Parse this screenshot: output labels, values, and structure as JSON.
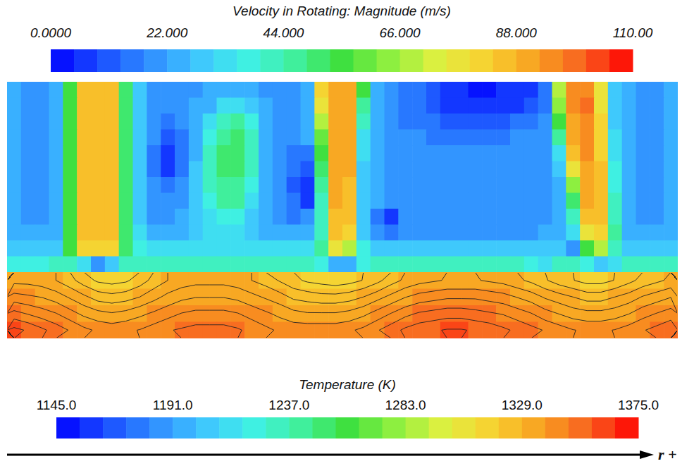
{
  "chart_data": {
    "type": "heatmap",
    "xlabel": "r +",
    "tick_labels": false,
    "panels": [
      {
        "type": "heatmap",
        "title": "Velocity in Rotating: Magnitude (m/s)",
        "colorbar": {
          "range": [
            0,
            110
          ],
          "ticks": [
            {
              "value": 0,
              "label": "0.0000"
            },
            {
              "value": 22,
              "label": "22.000"
            },
            {
              "value": 44,
              "label": "44.000"
            },
            {
              "value": 66,
              "label": "66.000"
            },
            {
              "value": 88,
              "label": "88.000"
            },
            {
              "value": 110,
              "label": "110.00"
            }
          ]
        },
        "values": [
          [
            22,
            20,
            18,
            22,
            55,
            85,
            86,
            85,
            50,
            28,
            20,
            18,
            18,
            20,
            22,
            24,
            24,
            22,
            20,
            20,
            18,
            22,
            80,
            88,
            88,
            55,
            24,
            18,
            16,
            14,
            10,
            6,
            5,
            4,
            4,
            5,
            6,
            8,
            14,
            70,
            94,
            96,
            75,
            30,
            22,
            20,
            20,
            22
          ],
          [
            22,
            20,
            18,
            22,
            55,
            86,
            87,
            86,
            50,
            30,
            20,
            18,
            18,
            22,
            26,
            32,
            34,
            28,
            22,
            20,
            18,
            22,
            75,
            88,
            88,
            45,
            24,
            18,
            16,
            14,
            12,
            8,
            6,
            5,
            5,
            6,
            8,
            10,
            16,
            65,
            94,
            97,
            78,
            30,
            22,
            20,
            20,
            22
          ],
          [
            22,
            20,
            18,
            22,
            55,
            86,
            87,
            86,
            50,
            30,
            18,
            14,
            18,
            24,
            32,
            42,
            46,
            36,
            24,
            20,
            18,
            22,
            70,
            88,
            88,
            40,
            24,
            18,
            16,
            16,
            14,
            12,
            10,
            10,
            10,
            12,
            14,
            16,
            18,
            55,
            92,
            96,
            80,
            30,
            22,
            20,
            20,
            22
          ],
          [
            22,
            20,
            18,
            22,
            55,
            86,
            87,
            86,
            50,
            30,
            18,
            10,
            16,
            26,
            38,
            48,
            50,
            40,
            26,
            20,
            18,
            22,
            60,
            88,
            88,
            35,
            24,
            18,
            18,
            18,
            16,
            16,
            16,
            16,
            16,
            16,
            18,
            18,
            20,
            45,
            90,
            95,
            80,
            32,
            22,
            20,
            20,
            22
          ],
          [
            22,
            20,
            18,
            22,
            55,
            86,
            87,
            86,
            50,
            30,
            16,
            6,
            14,
            26,
            40,
            50,
            52,
            42,
            26,
            20,
            16,
            16,
            55,
            88,
            88,
            32,
            24,
            18,
            18,
            18,
            18,
            18,
            18,
            18,
            18,
            18,
            18,
            18,
            20,
            35,
            85,
            94,
            82,
            34,
            22,
            20,
            20,
            22
          ],
          [
            22,
            20,
            18,
            22,
            55,
            86,
            87,
            86,
            50,
            30,
            16,
            8,
            16,
            28,
            40,
            50,
            50,
            40,
            24,
            18,
            14,
            10,
            50,
            88,
            88,
            30,
            22,
            18,
            18,
            18,
            18,
            18,
            18,
            18,
            18,
            18,
            18,
            18,
            20,
            28,
            75,
            92,
            84,
            36,
            22,
            20,
            20,
            22
          ],
          [
            22,
            20,
            18,
            22,
            55,
            86,
            87,
            86,
            50,
            30,
            18,
            16,
            18,
            28,
            40,
            48,
            48,
            38,
            22,
            18,
            12,
            6,
            45,
            88,
            86,
            30,
            22,
            18,
            18,
            18,
            18,
            18,
            18,
            18,
            18,
            18,
            18,
            18,
            20,
            24,
            62,
            90,
            86,
            38,
            22,
            20,
            20,
            22
          ],
          [
            22,
            20,
            18,
            22,
            55,
            86,
            87,
            86,
            50,
            30,
            18,
            18,
            20,
            28,
            38,
            44,
            44,
            34,
            22,
            18,
            14,
            8,
            42,
            88,
            85,
            28,
            22,
            18,
            18,
            18,
            18,
            18,
            18,
            18,
            18,
            18,
            18,
            18,
            20,
            22,
            50,
            88,
            86,
            40,
            22,
            20,
            20,
            22
          ],
          [
            22,
            20,
            18,
            22,
            55,
            86,
            87,
            86,
            50,
            30,
            20,
            20,
            22,
            28,
            34,
            38,
            38,
            30,
            22,
            18,
            16,
            18,
            40,
            86,
            84,
            28,
            14,
            8,
            18,
            18,
            18,
            18,
            18,
            18,
            18,
            18,
            18,
            18,
            20,
            22,
            40,
            85,
            84,
            40,
            22,
            20,
            20,
            22
          ],
          [
            24,
            22,
            22,
            24,
            55,
            86,
            87,
            86,
            50,
            32,
            24,
            24,
            26,
            30,
            32,
            34,
            34,
            30,
            26,
            24,
            22,
            24,
            42,
            85,
            80,
            30,
            18,
            14,
            20,
            20,
            20,
            20,
            20,
            20,
            20,
            20,
            20,
            20,
            22,
            24,
            32,
            75,
            80,
            45,
            24,
            22,
            22,
            24
          ],
          [
            28,
            28,
            28,
            30,
            55,
            80,
            82,
            80,
            50,
            36,
            32,
            32,
            32,
            34,
            34,
            34,
            34,
            34,
            32,
            32,
            32,
            32,
            46,
            75,
            70,
            36,
            30,
            30,
            30,
            30,
            30,
            30,
            30,
            30,
            30,
            30,
            30,
            30,
            30,
            30,
            20,
            55,
            70,
            40,
            30,
            28,
            28,
            28
          ],
          [
            36,
            38,
            38,
            40,
            42,
            35,
            20,
            30,
            42,
            40,
            40,
            40,
            40,
            40,
            40,
            40,
            40,
            40,
            40,
            40,
            40,
            40,
            36,
            22,
            26,
            38,
            40,
            40,
            40,
            40,
            40,
            40,
            40,
            40,
            40,
            40,
            40,
            36,
            34,
            40,
            40,
            36,
            30,
            34,
            40,
            40,
            40,
            40
          ]
        ]
      },
      {
        "type": "contour",
        "title": "Temperature (K)",
        "colorbar": {
          "range": [
            1145,
            1375
          ],
          "ticks": [
            {
              "value": 1145,
              "label": "1145.0"
            },
            {
              "value": 1191,
              "label": "1191.0"
            },
            {
              "value": 1237,
              "label": "1237.0"
            },
            {
              "value": 1283,
              "label": "1283.0"
            },
            {
              "value": 1329,
              "label": "1329.0"
            },
            {
              "value": 1375,
              "label": "1375.0"
            }
          ]
        },
        "values": [
          [
            1332,
            1332,
            1331,
            1329,
            1326,
            1322,
            1319,
            1318,
            1319,
            1322,
            1326,
            1329,
            1331,
            1332,
            1332,
            1332,
            1331,
            1329,
            1327,
            1324,
            1321,
            1319,
            1318,
            1317,
            1318,
            1320,
            1323,
            1327,
            1330,
            1332,
            1333,
            1334,
            1334,
            1334,
            1333,
            1332,
            1330,
            1328,
            1325,
            1322,
            1320,
            1318,
            1318,
            1320,
            1323,
            1326,
            1328,
            1330
          ],
          [
            1340,
            1339,
            1338,
            1336,
            1333,
            1330,
            1327,
            1326,
            1327,
            1329,
            1332,
            1335,
            1337,
            1338,
            1338,
            1338,
            1337,
            1335,
            1333,
            1331,
            1328,
            1327,
            1326,
            1326,
            1327,
            1329,
            1332,
            1335,
            1338,
            1340,
            1341,
            1342,
            1342,
            1342,
            1341,
            1340,
            1338,
            1336,
            1333,
            1331,
            1329,
            1327,
            1327,
            1329,
            1331,
            1334,
            1336,
            1338
          ],
          [
            1349,
            1347,
            1345,
            1343,
            1340,
            1337,
            1335,
            1334,
            1335,
            1337,
            1339,
            1341,
            1343,
            1344,
            1344,
            1344,
            1343,
            1341,
            1339,
            1337,
            1335,
            1334,
            1334,
            1334,
            1335,
            1337,
            1340,
            1343,
            1346,
            1348,
            1349,
            1350,
            1350,
            1349,
            1348,
            1347,
            1345,
            1343,
            1340,
            1338,
            1336,
            1335,
            1335,
            1336,
            1338,
            1341,
            1343,
            1345
          ],
          [
            1358,
            1356,
            1353,
            1350,
            1347,
            1344,
            1342,
            1341,
            1342,
            1343,
            1345,
            1347,
            1348,
            1349,
            1349,
            1349,
            1348,
            1346,
            1344,
            1342,
            1341,
            1341,
            1341,
            1341,
            1342,
            1344,
            1347,
            1350,
            1353,
            1355,
            1356,
            1357,
            1357,
            1356,
            1355,
            1353,
            1351,
            1349,
            1347,
            1345,
            1343,
            1342,
            1342,
            1343,
            1345,
            1347,
            1349,
            1351
          ]
        ]
      }
    ]
  }
}
